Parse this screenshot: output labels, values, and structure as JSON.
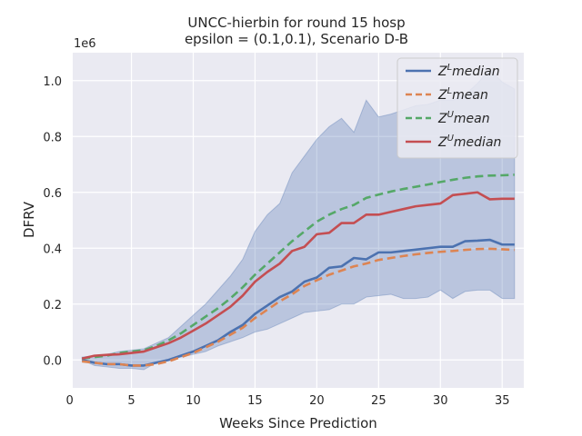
{
  "chart_data": {
    "type": "line",
    "title": "UNCC-hierbin for round 15 hosp",
    "subtitle": "epsilon = (0.1,0.1), Scenario D-B",
    "xlabel": "Weeks Since Prediction",
    "ylabel": "DFRV",
    "y_scale_label": "1e6",
    "xlim": [
      0.25,
      36.75
    ],
    "ylim": [
      -0.1,
      1.1
    ],
    "y_unit_multiplier": 1000000,
    "xticks": [
      0,
      5,
      10,
      15,
      20,
      25,
      30,
      35
    ],
    "yticks": [
      0.0,
      0.2,
      0.4,
      0.6,
      0.8,
      1.0
    ],
    "ytick_labels": [
      "0.0",
      "0.2",
      "0.4",
      "0.6",
      "0.8",
      "1.0"
    ],
    "grid": true,
    "legend_position": "top-right",
    "x": [
      1,
      2,
      3,
      4,
      5,
      6,
      7,
      8,
      9,
      10,
      11,
      12,
      13,
      14,
      15,
      16,
      17,
      18,
      19,
      20,
      21,
      22,
      23,
      24,
      25,
      26,
      27,
      28,
      29,
      30,
      31,
      32,
      33,
      34,
      35,
      36
    ],
    "band": {
      "color": "#4c72b0",
      "lower": [
        0.0,
        -0.02,
        -0.025,
        -0.03,
        -0.03,
        -0.035,
        -0.01,
        0.0,
        0.01,
        0.02,
        0.03,
        0.05,
        0.065,
        0.08,
        0.1,
        0.11,
        0.13,
        0.15,
        0.17,
        0.175,
        0.18,
        0.2,
        0.2,
        0.225,
        0.23,
        0.235,
        0.22,
        0.22,
        0.225,
        0.25,
        0.22,
        0.245,
        0.25,
        0.25,
        0.22,
        0.22
      ],
      "upper": [
        0.01,
        0.015,
        0.02,
        0.03,
        0.035,
        0.04,
        0.06,
        0.08,
        0.12,
        0.16,
        0.2,
        0.25,
        0.3,
        0.36,
        0.46,
        0.52,
        0.56,
        0.67,
        0.73,
        0.79,
        0.835,
        0.865,
        0.815,
        0.93,
        0.87,
        0.88,
        0.895,
        0.91,
        0.915,
        0.93,
        0.93,
        0.95,
        0.99,
        1.04,
        0.995,
        0.97
      ]
    },
    "series": [
      {
        "name": "Z^L median",
        "color": "#4c72b0",
        "dash": "solid",
        "values": [
          0.0,
          -0.01,
          -0.015,
          -0.015,
          -0.02,
          -0.02,
          -0.01,
          0.0,
          0.015,
          0.03,
          0.05,
          0.07,
          0.1,
          0.125,
          0.165,
          0.195,
          0.225,
          0.245,
          0.28,
          0.295,
          0.33,
          0.335,
          0.365,
          0.36,
          0.385,
          0.385,
          0.39,
          0.395,
          0.4,
          0.405,
          0.405,
          0.425,
          0.427,
          0.43,
          0.413,
          0.413
        ]
      },
      {
        "name": "Z^L mean",
        "color": "#dd8452",
        "dash": "dashed",
        "values": [
          -0.005,
          -0.01,
          -0.015,
          -0.015,
          -0.02,
          -0.02,
          -0.015,
          -0.005,
          0.01,
          0.025,
          0.045,
          0.065,
          0.09,
          0.115,
          0.15,
          0.18,
          0.21,
          0.235,
          0.265,
          0.285,
          0.305,
          0.32,
          0.335,
          0.345,
          0.358,
          0.365,
          0.372,
          0.378,
          0.383,
          0.387,
          0.39,
          0.394,
          0.397,
          0.398,
          0.396,
          0.394
        ]
      },
      {
        "name": "Z^U mean",
        "color": "#55a868",
        "dash": "dashed",
        "values": [
          0.005,
          0.01,
          0.015,
          0.025,
          0.03,
          0.035,
          0.05,
          0.07,
          0.095,
          0.125,
          0.155,
          0.185,
          0.22,
          0.26,
          0.305,
          0.345,
          0.385,
          0.425,
          0.46,
          0.495,
          0.52,
          0.54,
          0.555,
          0.58,
          0.592,
          0.603,
          0.612,
          0.62,
          0.628,
          0.637,
          0.645,
          0.652,
          0.657,
          0.66,
          0.661,
          0.663
        ]
      },
      {
        "name": "Z^U median",
        "color": "#c44e52",
        "dash": "solid",
        "values": [
          0.005,
          0.015,
          0.018,
          0.02,
          0.025,
          0.03,
          0.045,
          0.06,
          0.08,
          0.105,
          0.13,
          0.16,
          0.19,
          0.23,
          0.28,
          0.315,
          0.345,
          0.39,
          0.405,
          0.45,
          0.455,
          0.49,
          0.49,
          0.52,
          0.52,
          0.53,
          0.54,
          0.55,
          0.555,
          0.56,
          0.59,
          0.595,
          0.6,
          0.575,
          0.577,
          0.577
        ]
      }
    ]
  }
}
